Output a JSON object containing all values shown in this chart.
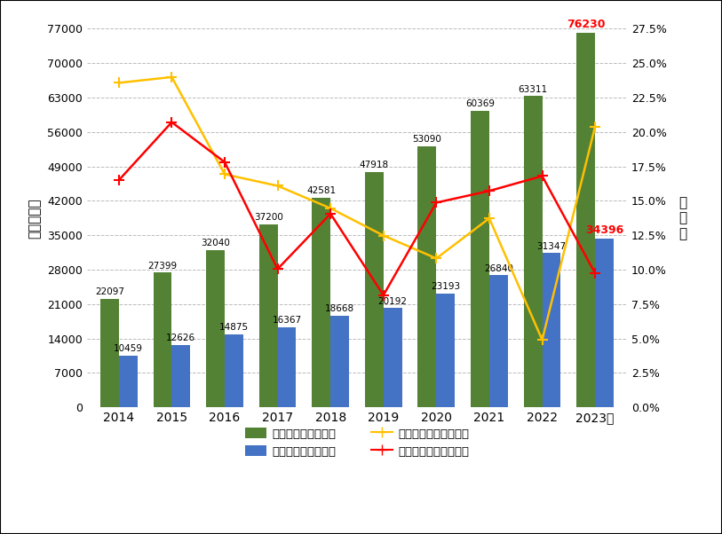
{
  "years": [
    "2014",
    "2015",
    "2016",
    "2017",
    "2018",
    "2019",
    "2020",
    "2021",
    "2022",
    "2023年"
  ],
  "qualified": [
    22097,
    27399,
    32040,
    37200,
    42581,
    47918,
    53090,
    60369,
    63311,
    76230
  ],
  "practicing": [
    10459,
    12626,
    14875,
    16367,
    18668,
    20192,
    23193,
    26840,
    31347,
    34396
  ],
  "qualified_growth": [
    0.2357,
    0.2399,
    0.1693,
    0.1609,
    0.1446,
    0.1248,
    0.1082,
    0.1373,
    0.049,
    0.204
  ],
  "practicing_growth": [
    0.165,
    0.2071,
    0.1781,
    0.1005,
    0.1406,
    0.0815,
    0.1487,
    0.1572,
    0.168,
    0.0974
  ],
  "bar_color_green": "#548235",
  "bar_color_blue": "#4472C4",
  "line_color_yellow": "#FFC000",
  "line_color_red": "#FF0000",
  "ylabel_left": "人数（人）",
  "ylabel_right": "增长率",
  "ylim_left": [
    0,
    77000
  ],
  "ylim_right": [
    0,
    0.275
  ],
  "yticks_left": [
    0,
    7000,
    14000,
    21000,
    28000,
    35000,
    42000,
    49000,
    56000,
    63000,
    70000,
    77000
  ],
  "yticks_right": [
    0.0,
    0.025,
    0.05,
    0.075,
    0.1,
    0.125,
    0.15,
    0.175,
    0.2,
    0.225,
    0.25,
    0.275
  ],
  "legend_labels": [
    "取得代理师资格人数",
    "执业专利代理师人数",
    "取得代理师资格增长率",
    "执业专利代理师增长率"
  ],
  "background_color": "#ffffff",
  "grid_color": "#bbbbbb",
  "bar_width": 0.35,
  "label_fontsize": 7.5,
  "last_label_fontsize": 9.0
}
